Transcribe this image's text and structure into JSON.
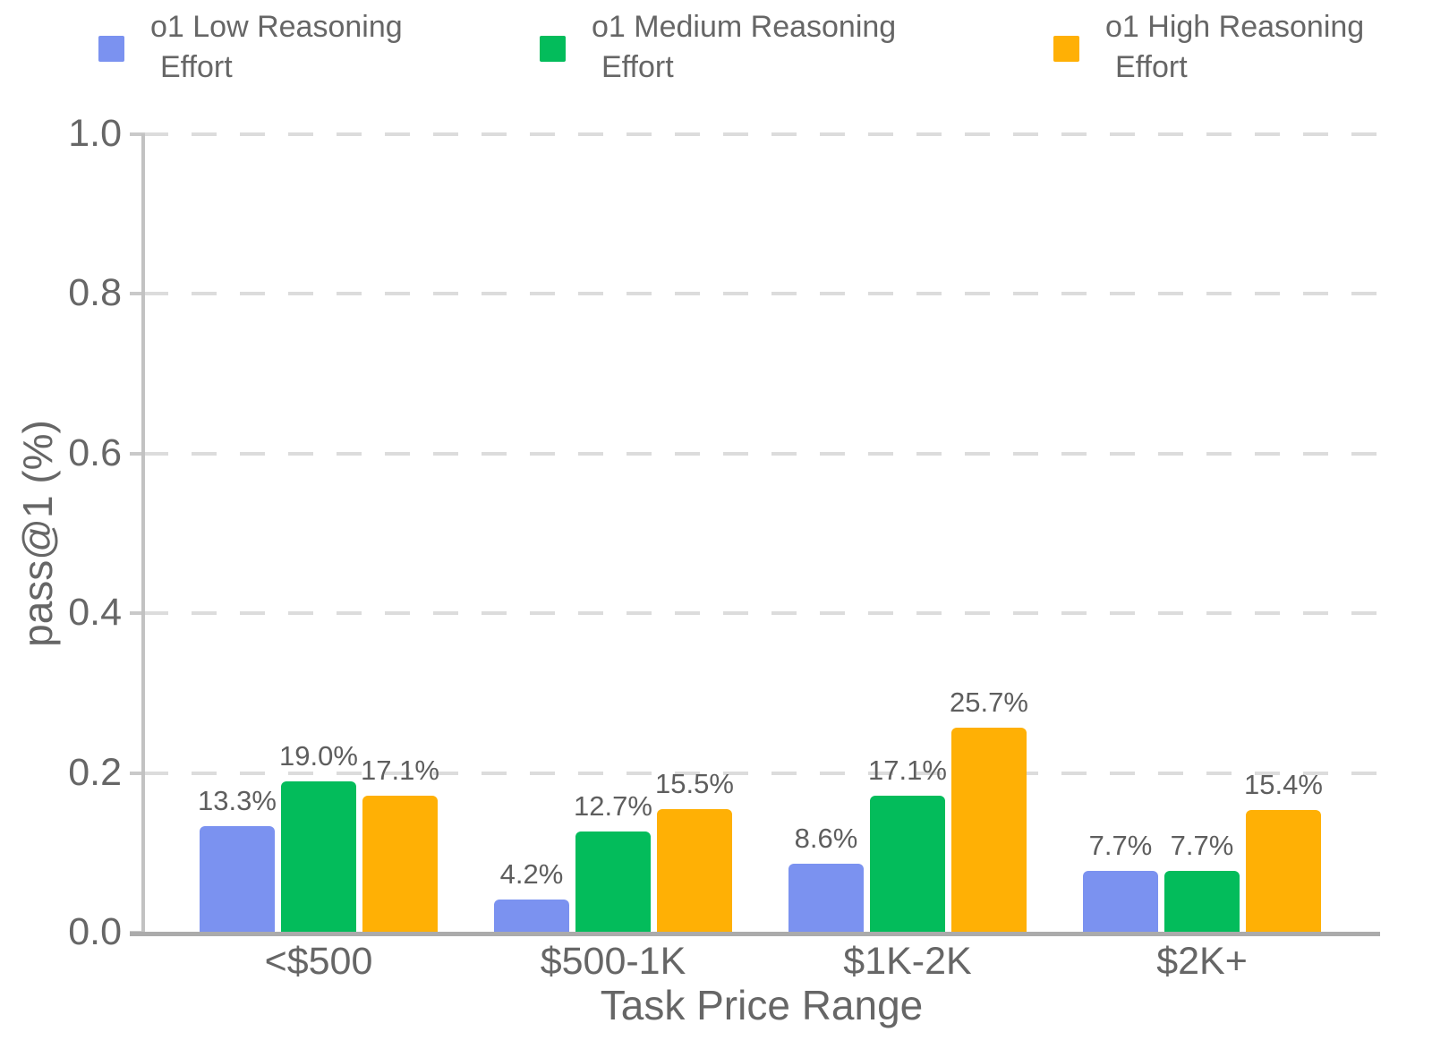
{
  "chart_data": {
    "type": "bar",
    "title": "",
    "xlabel": "Task Price Range",
    "ylabel": "pass@1 (%)",
    "ylim": [
      0.0,
      1.0
    ],
    "yticks": [
      0.0,
      0.2,
      0.4,
      0.6,
      0.8,
      1.0
    ],
    "ytick_labels": [
      "0.0",
      "0.2",
      "0.4",
      "0.6",
      "0.8",
      "1.0"
    ],
    "grid": "horizontal-dashed",
    "legend_position": "top",
    "categories": [
      "<$500",
      "$500-1K",
      "$1K-2K",
      "$2K+"
    ],
    "series": [
      {
        "name": "o1 Low Reasoning Effort",
        "legend_lines": [
          "o1 Low Reasoning",
          "Effort"
        ],
        "color": "#7B92F0",
        "values": [
          0.133,
          0.042,
          0.086,
          0.077
        ],
        "labels": [
          "13.3%",
          "4.2%",
          "8.6%",
          "7.7%"
        ]
      },
      {
        "name": "o1 Medium Reasoning Effort",
        "legend_lines": [
          "o1 Medium Reasoning",
          "Effort"
        ],
        "color": "#03BC5B",
        "values": [
          0.19,
          0.127,
          0.171,
          0.077
        ],
        "labels": [
          "19.0%",
          "12.7%",
          "17.1%",
          "7.7%"
        ]
      },
      {
        "name": "o1 High Reasoning Effort",
        "legend_lines": [
          "o1 High Reasoning",
          "Effort"
        ],
        "color": "#FFB005",
        "values": [
          0.171,
          0.155,
          0.257,
          0.154
        ],
        "labels": [
          "17.1%",
          "15.5%",
          "25.7%",
          "15.4%"
        ]
      }
    ]
  }
}
